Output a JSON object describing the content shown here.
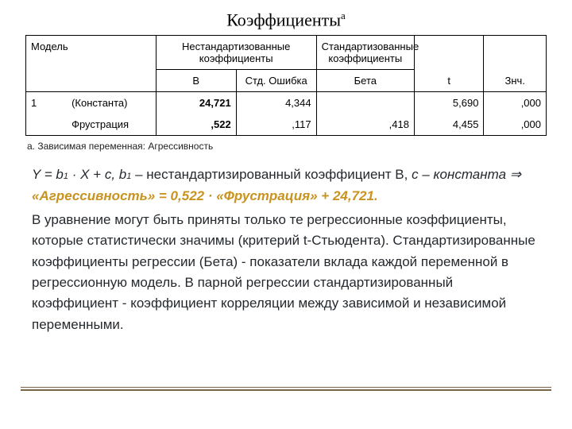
{
  "title": "Коэффициенты",
  "title_sup": "a",
  "headers": {
    "model": "Модель",
    "unstd": "Нестандартизованные коэффициенты",
    "std": "Стандартизованные коэффициенты",
    "b": "B",
    "se": "Стд. Ошибка",
    "beta": "Бета",
    "t": "t",
    "sig": "Знч."
  },
  "rows": [
    {
      "model": "1",
      "var": "(Константа)",
      "b": "24,721",
      "se": "4,344",
      "beta": "",
      "t": "5,690",
      "sig": ",000"
    },
    {
      "model": "",
      "var": "Фрустрация",
      "b": ",522",
      "se": ",117",
      "beta": ",418",
      "t": "4,455",
      "sig": ",000"
    }
  ],
  "footnote": "a. Зависимая переменная: Агрессивность",
  "eq": {
    "pre": "Y = b",
    "sub1": "1",
    "mid1": " · X + c, b",
    "sub2": "1",
    "mid2": " – нестандартизированный коэффициент В, ",
    "c": "c",
    "mid3": " – константа ⇒ ",
    "hl": "«Агрессивность» = 0,522 · «Фрустрация» + 24,721."
  },
  "para": "В уравнение могут быть приняты только те регрессионные коэффициенты, которые статистически значимы (критерий t-Стьюдента). Стандартизированные коэффициенты регрессии (Бета) - показатели вклада каждой переменной в регрессионную модель. В парной регрессии стандартизированный коэффициент - коэффициент корреляции между зависимой и независимой переменными."
}
